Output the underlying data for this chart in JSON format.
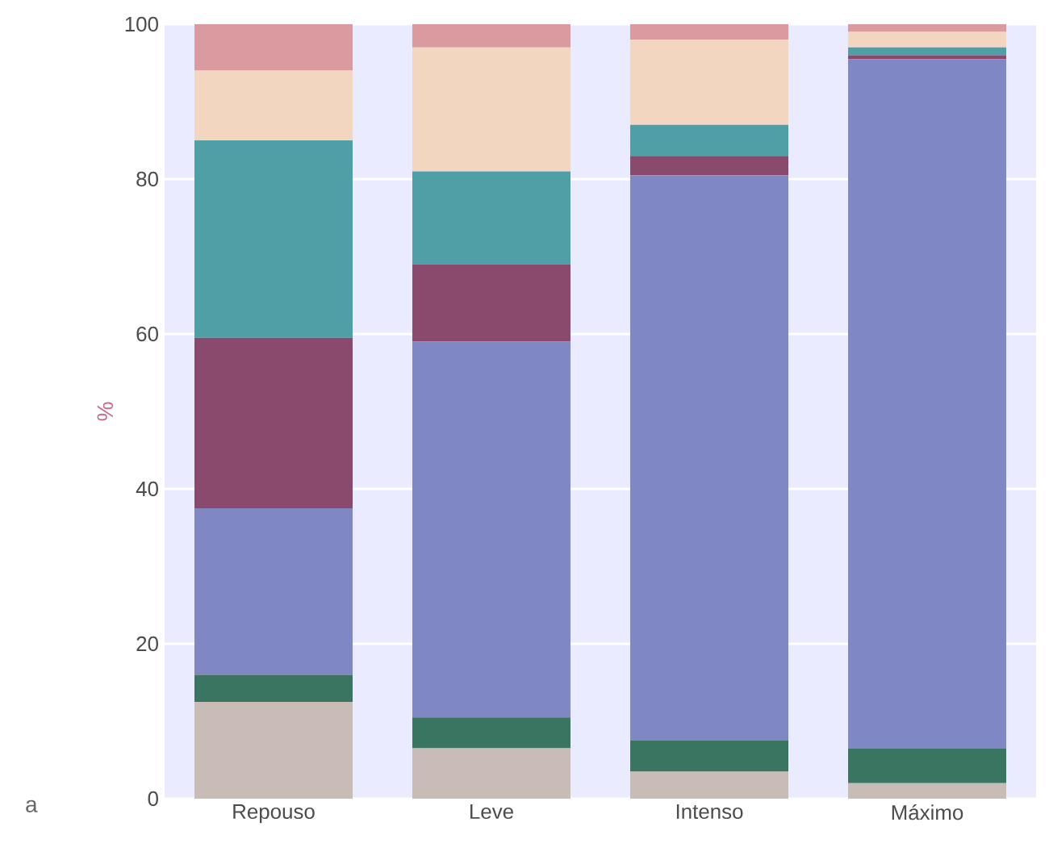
{
  "chart_data": {
    "type": "bar",
    "stacked": true,
    "ylabel": "%",
    "annotations": [
      "a"
    ],
    "categories": [
      "Repouso",
      "Leve",
      "Intenso",
      "Máximo"
    ],
    "series": [
      {
        "color": "#c9bcb6",
        "values": [
          12.5,
          6.5,
          3.5,
          2
        ]
      },
      {
        "color": "#3a7561",
        "values": [
          3.5,
          4,
          4,
          4.5
        ]
      },
      {
        "color": "#8088c4",
        "values": [
          21.5,
          48.5,
          73,
          89
        ]
      },
      {
        "color": "#8a4a6e",
        "values": [
          22,
          10,
          2.5,
          0.5
        ]
      },
      {
        "color": "#4e9fa6",
        "values": [
          25.5,
          12,
          4,
          1
        ]
      },
      {
        "color": "#f3d6c0",
        "values": [
          9,
          16,
          11,
          2
        ]
      },
      {
        "color": "#d99aa0",
        "values": [
          6,
          3,
          2,
          1
        ]
      }
    ],
    "ylim": [
      0,
      100
    ],
    "yticks": [
      0,
      20,
      40,
      60,
      80,
      100
    ],
    "grid": "y"
  }
}
